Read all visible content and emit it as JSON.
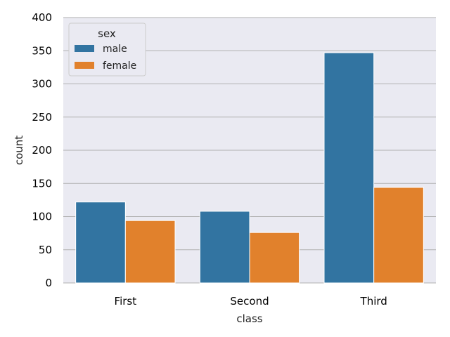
{
  "chart_data": {
    "type": "bar",
    "title": "",
    "xlabel": "class",
    "ylabel": "count",
    "categories": [
      "First",
      "Second",
      "Third"
    ],
    "series": [
      {
        "name": "male",
        "values": [
          122,
          108,
          347
        ],
        "color": "#3274a1"
      },
      {
        "name": "female",
        "values": [
          94,
          76,
          144
        ],
        "color": "#e1812c"
      }
    ],
    "ylim": [
      0,
      400
    ],
    "yticks": [
      0,
      50,
      100,
      150,
      200,
      250,
      300,
      350,
      400
    ],
    "legend": {
      "title": "sex",
      "placement": "top-left"
    },
    "grid": "horizontal",
    "background": "#eaeaf2"
  }
}
